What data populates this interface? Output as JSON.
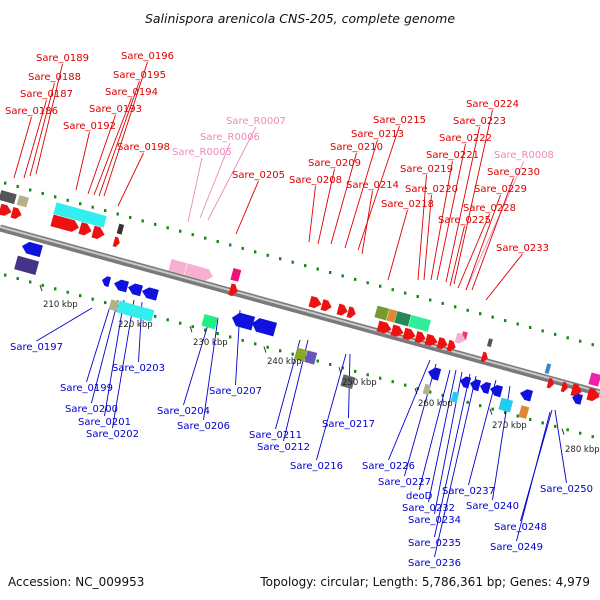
{
  "title": "Salinispora arenicola CNS-205, complete genome",
  "footer": {
    "accession": "Accession: NC_009953",
    "topology": "Topology: circular; Length: 5,786,361 bp; Genes: 4,979"
  },
  "colors": {
    "forward_label": "#dd0000",
    "rna_label": "#ee88bb",
    "reverse_label": "#0000cc",
    "backbone": "#9a9a9a",
    "tick": "#118811"
  },
  "kbp_labels": [
    "210 kbp",
    "220 kbp",
    "230 kbp",
    "240 kbp",
    "250 kbp",
    "260 kbp",
    "270 kbp",
    "280 kbp"
  ],
  "top_labels": [
    {
      "text": "Sare_0189",
      "kind": "fwd"
    },
    {
      "text": "Sare_0196",
      "kind": "fwd"
    },
    {
      "text": "Sare_0188",
      "kind": "fwd"
    },
    {
      "text": "Sare_0195",
      "kind": "fwd"
    },
    {
      "text": "Sare_0187",
      "kind": "fwd"
    },
    {
      "text": "Sare_0194",
      "kind": "fwd"
    },
    {
      "text": "Sare_0186",
      "kind": "fwd"
    },
    {
      "text": "Sare_0193",
      "kind": "fwd"
    },
    {
      "text": "Sare_0192",
      "kind": "fwd"
    },
    {
      "text": "Sare_R0007",
      "kind": "rna"
    },
    {
      "text": "Sare_R0006",
      "kind": "rna"
    },
    {
      "text": "Sare_0198",
      "kind": "fwd"
    },
    {
      "text": "Sare_R0005",
      "kind": "rna"
    },
    {
      "text": "Sare_0205",
      "kind": "fwd"
    },
    {
      "text": "Sare_0215",
      "kind": "fwd"
    },
    {
      "text": "Sare_0213",
      "kind": "fwd"
    },
    {
      "text": "Sare_0210",
      "kind": "fwd"
    },
    {
      "text": "Sare_0209",
      "kind": "fwd"
    },
    {
      "text": "Sare_0208",
      "kind": "fwd"
    },
    {
      "text": "Sare_0214",
      "kind": "fwd"
    },
    {
      "text": "Sare_0224",
      "kind": "fwd"
    },
    {
      "text": "Sare_0223",
      "kind": "fwd"
    },
    {
      "text": "Sare_0222",
      "kind": "fwd"
    },
    {
      "text": "Sare_0221",
      "kind": "fwd"
    },
    {
      "text": "Sare_R0008",
      "kind": "rna"
    },
    {
      "text": "Sare_0219",
      "kind": "fwd"
    },
    {
      "text": "Sare_0230",
      "kind": "fwd"
    },
    {
      "text": "Sare_0220",
      "kind": "fwd"
    },
    {
      "text": "Sare_0229",
      "kind": "fwd"
    },
    {
      "text": "Sare_0218",
      "kind": "fwd"
    },
    {
      "text": "Sare_0228",
      "kind": "fwd"
    },
    {
      "text": "Sare_0225",
      "kind": "fwd"
    },
    {
      "text": "Sare_0233",
      "kind": "fwd"
    }
  ],
  "bottom_labels": [
    {
      "text": "Sare_0197"
    },
    {
      "text": "Sare_0199"
    },
    {
      "text": "Sare_0203"
    },
    {
      "text": "Sare_0200"
    },
    {
      "text": "Sare_0201"
    },
    {
      "text": "Sare_0202"
    },
    {
      "text": "Sare_0204"
    },
    {
      "text": "Sare_0207"
    },
    {
      "text": "Sare_0206"
    },
    {
      "text": "Sare_0211"
    },
    {
      "text": "Sare_0212"
    },
    {
      "text": "Sare_0217"
    },
    {
      "text": "Sare_0216"
    },
    {
      "text": "Sare_0226"
    },
    {
      "text": "Sare_0227"
    },
    {
      "text": "deoD"
    },
    {
      "text": "Sare_0237"
    },
    {
      "text": "Sare_0250"
    },
    {
      "text": "Sare_0232"
    },
    {
      "text": "Sare_0240"
    },
    {
      "text": "Sare_0234"
    },
    {
      "text": "Sare_0248"
    },
    {
      "text": "Sare_0235"
    },
    {
      "text": "Sare_0249"
    },
    {
      "text": "Sare_0236"
    }
  ]
}
